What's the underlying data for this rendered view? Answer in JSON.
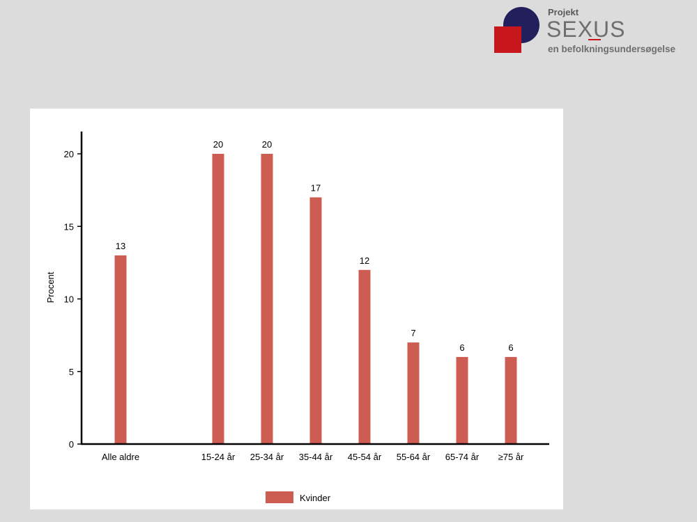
{
  "logo": {
    "projekt": "Projekt",
    "sexus": "SEXUS",
    "subtitle": "en befolkningsundersøgelse"
  },
  "colors": {
    "background": "#dcdcdc",
    "bar": "#cd5c52",
    "logo_circle": "#231f5c",
    "logo_square": "#c8161d"
  },
  "chart_data": {
    "type": "bar",
    "title": "",
    "xlabel": "",
    "ylabel": "Procent",
    "ylim": [
      0,
      21.5
    ],
    "yticks": [
      0,
      5,
      10,
      15,
      20
    ],
    "grid": false,
    "legend_position": "bottom-center",
    "categories": [
      "Alle aldre",
      "15-24 år",
      "25-34 år",
      "35-44 år",
      "45-54 år",
      "55-64 år",
      "65-74 år",
      "≥75 år"
    ],
    "series": [
      {
        "name": "Kvinder",
        "color": "#cd5c52",
        "values": [
          13,
          20,
          20,
          17,
          12,
          7,
          6,
          6
        ]
      }
    ]
  }
}
